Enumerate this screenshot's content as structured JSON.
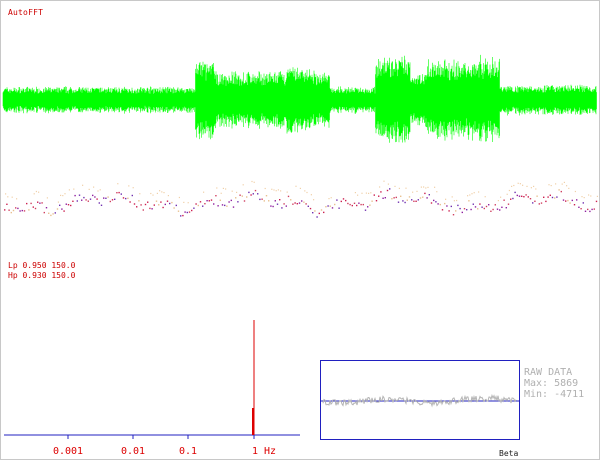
{
  "app": {
    "title": "AutoFFT"
  },
  "colors": {
    "waveform": "#00ff00",
    "label_red": "#cc0000",
    "axis_blue": "#2020c0",
    "peak_red": "#dd0000",
    "raw_gray": "#b4b4b4"
  },
  "filters": {
    "lp": "Lp 0.950 150.0",
    "hp": "Hp 0.930 150.0"
  },
  "spectrum": {
    "xscale": "log",
    "tick_labels": [
      "0.001",
      "0.01",
      "0.1",
      "1 Hz"
    ],
    "tick_values": [
      0.001,
      0.01,
      0.1,
      1
    ],
    "peak": {
      "freq_hz": 1.0,
      "relative_height": 1.0
    }
  },
  "raw_panel": {
    "title": "RAW DATA",
    "max": "Max: 5869",
    "min": "Min: -4711"
  },
  "footer": {
    "beta": "Beta"
  }
}
